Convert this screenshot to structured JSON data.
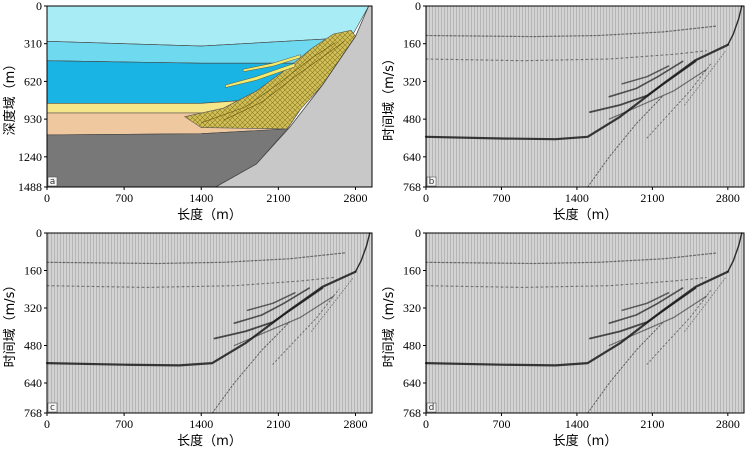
{
  "chart_data": [
    {
      "type": "model",
      "panel": "a",
      "xlabel": "长度（m）",
      "ylabel": "深度域（m）",
      "xlim": [
        0,
        2950
      ],
      "ylim": [
        0,
        1488
      ],
      "xticks": [
        "0",
        "700",
        "1400",
        "2100",
        "2800"
      ],
      "xtick_values": [
        0,
        700,
        1400,
        2100,
        2800
      ],
      "yticks": [
        "0",
        "310",
        "620",
        "930",
        "1240",
        "1488"
      ],
      "ytick_values": [
        0,
        310,
        620,
        930,
        1240,
        1488
      ],
      "layers": [
        {
          "name": "air",
          "color": "#ffffff"
        },
        {
          "name": "water-top",
          "color": "#a8ecf6"
        },
        {
          "name": "water-mid",
          "color": "#6ed9ef"
        },
        {
          "name": "water-deep",
          "color": "#19b4e3"
        },
        {
          "name": "sediment-yellow",
          "color": "#f5e68a"
        },
        {
          "name": "sediment-tan",
          "color": "#f0c8a0"
        },
        {
          "name": "basement",
          "color": "#787878"
        },
        {
          "name": "slope",
          "color": "#c8c8c8"
        },
        {
          "name": "wedge",
          "color": "#c8b850"
        }
      ]
    },
    {
      "type": "seismic",
      "panel": "b",
      "xlabel": "长度（m）",
      "ylabel": "时间域（m/s）",
      "xlim": [
        0,
        2950
      ],
      "ylim": [
        0,
        768
      ],
      "xticks": [
        "0",
        "700",
        "1400",
        "2100",
        "2800"
      ],
      "xtick_values": [
        0,
        700,
        1400,
        2100,
        2800
      ],
      "yticks": [
        "0",
        "160",
        "320",
        "480",
        "640",
        "768"
      ],
      "ytick_values": [
        0,
        160,
        320,
        480,
        640,
        768
      ]
    },
    {
      "type": "seismic",
      "panel": "c",
      "xlabel": "长度（m）",
      "ylabel": "时间域（m/s）",
      "xlim": [
        0,
        2950
      ],
      "ylim": [
        0,
        768
      ],
      "xticks": [
        "0",
        "700",
        "1400",
        "2100",
        "2800"
      ],
      "xtick_values": [
        0,
        700,
        1400,
        2100,
        2800
      ],
      "yticks": [
        "0",
        "160",
        "320",
        "480",
        "640",
        "768"
      ],
      "ytick_values": [
        0,
        160,
        320,
        480,
        640,
        768
      ]
    },
    {
      "type": "seismic",
      "panel": "d",
      "xlabel": "长度（m）",
      "ylabel": "时间域（m/s）",
      "xlim": [
        0,
        2950
      ],
      "ylim": [
        0,
        768
      ],
      "xticks": [
        "0",
        "700",
        "1400",
        "2100",
        "2800"
      ],
      "xtick_values": [
        0,
        700,
        1400,
        2100,
        2800
      ],
      "yticks": [
        "0",
        "160",
        "320",
        "480",
        "640",
        "768"
      ],
      "ytick_values": [
        0,
        160,
        320,
        480,
        640,
        768
      ]
    }
  ]
}
